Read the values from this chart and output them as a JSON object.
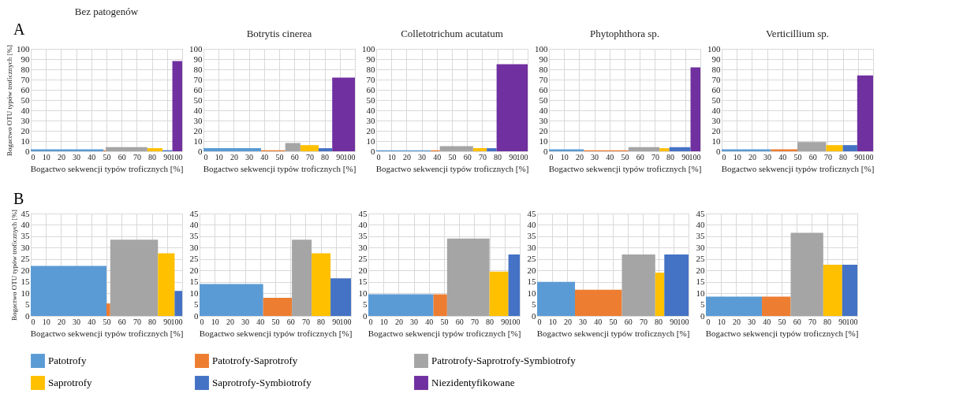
{
  "chart_data": [
    {
      "type": "histogram",
      "title": "Bez patogenów",
      "xlabel": "Bogactwo sekwencji typów troficznych [%]",
      "ylabel": "Bogactwo OTU typów troficznych [%]",
      "annotations": [
        "A"
      ],
      "legend": "bottom",
      "grid": true,
      "xlim": [
        0,
        100
      ],
      "xticks": [
        0,
        10,
        20,
        30,
        40,
        50,
        60,
        70,
        80,
        90,
        100
      ],
      "ylim": [
        0,
        100
      ],
      "yticks": [
        0,
        10,
        20,
        30,
        40,
        50,
        60,
        70,
        80,
        90,
        100
      ],
      "bins": [
        0,
        48,
        49.5,
        77,
        87,
        93.5,
        100
      ],
      "series": [
        {
          "name": "Patotrofy",
          "color": "#5b9bd5",
          "values": [
            2,
            null,
            null,
            null,
            null,
            null
          ]
        },
        {
          "name": "Patotrofy-Saprotrofy",
          "color": "#ed7d31",
          "values": [
            null,
            1,
            null,
            null,
            null,
            null
          ]
        },
        {
          "name": "Patrotrofy-Saprotrofy-Symbiotrofy",
          "color": "#a5a5a5",
          "values": [
            null,
            null,
            4,
            null,
            null,
            null
          ]
        },
        {
          "name": "Saprotrofy",
          "color": "#ffc000",
          "values": [
            null,
            null,
            null,
            3,
            null,
            null
          ]
        },
        {
          "name": "Saprotrofy-Symbiotrofy",
          "color": "#4472c4",
          "values": [
            null,
            null,
            null,
            null,
            1,
            null
          ]
        },
        {
          "name": "Niezidentyfikowane",
          "color": "#7030a0",
          "values": [
            null,
            null,
            null,
            null,
            null,
            88
          ]
        }
      ]
    },
    {
      "type": "histogram",
      "title": "Botrytis cinerea",
      "xlabel": "Bogactwo sekwencji typów troficznych [%]",
      "grid": true,
      "xlim": [
        0,
        100
      ],
      "xticks": [
        0,
        10,
        20,
        30,
        40,
        50,
        60,
        70,
        80,
        90,
        100
      ],
      "ylim": [
        0,
        100
      ],
      "yticks": [
        0,
        10,
        20,
        30,
        40,
        50,
        60,
        70,
        80,
        90,
        100
      ],
      "bins": [
        0,
        38,
        54,
        64,
        76,
        85,
        100
      ],
      "series": [
        {
          "color": "#5b9bd5",
          "values": [
            3,
            null,
            null,
            null,
            null,
            null
          ]
        },
        {
          "color": "#ed7d31",
          "values": [
            null,
            1,
            null,
            null,
            null,
            null
          ]
        },
        {
          "color": "#a5a5a5",
          "values": [
            null,
            null,
            8,
            null,
            null,
            null
          ]
        },
        {
          "color": "#ffc000",
          "values": [
            null,
            null,
            null,
            6,
            null,
            null
          ]
        },
        {
          "color": "#4472c4",
          "values": [
            null,
            null,
            null,
            null,
            3,
            null
          ]
        },
        {
          "color": "#7030a0",
          "values": [
            null,
            null,
            null,
            null,
            null,
            72
          ]
        }
      ]
    },
    {
      "type": "histogram",
      "title": "Colletotrichum acutatum",
      "xlabel": "Bogactwo sekwencji typów troficznych [%]",
      "grid": true,
      "xlim": [
        0,
        100
      ],
      "xticks": [
        0,
        10,
        20,
        30,
        40,
        50,
        60,
        70,
        80,
        90,
        100
      ],
      "ylim": [
        0,
        100
      ],
      "yticks": [
        0,
        10,
        20,
        30,
        40,
        50,
        60,
        70,
        80,
        90,
        100
      ],
      "bins": [
        0,
        36,
        42,
        64,
        73,
        79.5,
        100
      ],
      "series": [
        {
          "color": "#5b9bd5",
          "values": [
            1,
            null,
            null,
            null,
            null,
            null
          ]
        },
        {
          "color": "#ed7d31",
          "values": [
            null,
            1,
            null,
            null,
            null,
            null
          ]
        },
        {
          "color": "#a5a5a5",
          "values": [
            null,
            null,
            5,
            null,
            null,
            null
          ]
        },
        {
          "color": "#ffc000",
          "values": [
            null,
            null,
            null,
            3,
            null,
            null
          ]
        },
        {
          "color": "#4472c4",
          "values": [
            null,
            null,
            null,
            null,
            3,
            null
          ]
        },
        {
          "color": "#7030a0",
          "values": [
            null,
            null,
            null,
            null,
            null,
            85
          ]
        }
      ]
    },
    {
      "type": "histogram",
      "title": "Phytophthora sp.",
      "xlabel": "Bogactwo sekwencji typów troficznych [%]",
      "grid": true,
      "xlim": [
        0,
        100
      ],
      "xticks": [
        0,
        10,
        20,
        30,
        40,
        50,
        60,
        70,
        80,
        90,
        100
      ],
      "ylim": [
        0,
        100
      ],
      "yticks": [
        0,
        10,
        20,
        30,
        40,
        50,
        60,
        70,
        80,
        90,
        100
      ],
      "bins": [
        0,
        23,
        52.5,
        73,
        79.5,
        93.5,
        100
      ],
      "series": [
        {
          "color": "#5b9bd5",
          "values": [
            2,
            null,
            null,
            null,
            null,
            null
          ]
        },
        {
          "color": "#ed7d31",
          "values": [
            null,
            1,
            null,
            null,
            null,
            null
          ]
        },
        {
          "color": "#a5a5a5",
          "values": [
            null,
            null,
            4,
            null,
            null,
            null
          ]
        },
        {
          "color": "#ffc000",
          "values": [
            null,
            null,
            null,
            3,
            null,
            null
          ]
        },
        {
          "color": "#4472c4",
          "values": [
            null,
            null,
            null,
            null,
            4,
            null
          ]
        },
        {
          "color": "#7030a0",
          "values": [
            null,
            null,
            null,
            null,
            null,
            82
          ]
        }
      ]
    },
    {
      "type": "histogram",
      "title": "Verticillium sp.",
      "xlabel": "Bogactwo sekwencji typów troficznych [%]",
      "grid": true,
      "xlim": [
        0,
        100
      ],
      "xticks": [
        0,
        10,
        20,
        30,
        40,
        50,
        60,
        70,
        80,
        90,
        100
      ],
      "ylim": [
        0,
        100
      ],
      "yticks": [
        0,
        10,
        20,
        30,
        40,
        50,
        60,
        70,
        80,
        90,
        100
      ],
      "bins": [
        0,
        32.5,
        50,
        69,
        80,
        89.5,
        100
      ],
      "series": [
        {
          "color": "#5b9bd5",
          "values": [
            2,
            null,
            null,
            null,
            null,
            null
          ]
        },
        {
          "color": "#ed7d31",
          "values": [
            null,
            2,
            null,
            null,
            null,
            null
          ]
        },
        {
          "color": "#a5a5a5",
          "values": [
            null,
            null,
            9,
            null,
            null,
            null
          ]
        },
        {
          "color": "#ffc000",
          "values": [
            null,
            null,
            null,
            6,
            null,
            null
          ]
        },
        {
          "color": "#4472c4",
          "values": [
            null,
            null,
            null,
            null,
            6,
            null
          ]
        },
        {
          "color": "#7030a0",
          "values": [
            null,
            null,
            null,
            null,
            null,
            74
          ]
        }
      ]
    },
    {
      "type": "histogram",
      "xlabel": "Bogactwo sekwencji typów troficznych [%]",
      "ylabel": "Bogactwo OTU typów troficznych [%]",
      "annotations": [
        "B"
      ],
      "grid": true,
      "xlim": [
        0,
        100
      ],
      "xticks": [
        0,
        10,
        20,
        30,
        40,
        50,
        60,
        70,
        80,
        90,
        100
      ],
      "ylim": [
        0,
        45
      ],
      "yticks": [
        0,
        5,
        10,
        15,
        20,
        25,
        30,
        35,
        40,
        45
      ],
      "bins": [
        0,
        50,
        52.5,
        84,
        95,
        100
      ],
      "series": [
        {
          "color": "#5b9bd5",
          "values": [
            22,
            null,
            null,
            null,
            null
          ]
        },
        {
          "color": "#ed7d31",
          "values": [
            null,
            5.5,
            null,
            null,
            null
          ]
        },
        {
          "color": "#a5a5a5",
          "values": [
            null,
            null,
            33.5,
            null,
            null
          ]
        },
        {
          "color": "#ffc000",
          "values": [
            null,
            null,
            null,
            27.5,
            null
          ]
        },
        {
          "color": "#4472c4",
          "values": [
            null,
            null,
            null,
            null,
            11
          ]
        }
      ]
    },
    {
      "type": "histogram",
      "xlabel": "Bogactwo sekwencji typów troficznych [%]",
      "grid": true,
      "xlim": [
        0,
        100
      ],
      "xticks": [
        0,
        10,
        20,
        30,
        40,
        50,
        60,
        70,
        80,
        90,
        100
      ],
      "ylim": [
        0,
        45
      ],
      "yticks": [
        0,
        5,
        10,
        15,
        20,
        25,
        30,
        35,
        40,
        45
      ],
      "bins": [
        0,
        42,
        61,
        74,
        86.5,
        100
      ],
      "series": [
        {
          "color": "#5b9bd5",
          "values": [
            14,
            null,
            null,
            null,
            null
          ]
        },
        {
          "color": "#ed7d31",
          "values": [
            null,
            8,
            null,
            null,
            null
          ]
        },
        {
          "color": "#a5a5a5",
          "values": [
            null,
            null,
            33.5,
            null,
            null
          ]
        },
        {
          "color": "#ffc000",
          "values": [
            null,
            null,
            null,
            27.5,
            null
          ]
        },
        {
          "color": "#4472c4",
          "values": [
            null,
            null,
            null,
            null,
            16.5
          ]
        }
      ]
    },
    {
      "type": "histogram",
      "xlabel": "Bogactwo sekwencji typów troficznych [%]",
      "grid": true,
      "xlim": [
        0,
        100
      ],
      "xticks": [
        0,
        10,
        20,
        30,
        40,
        50,
        60,
        70,
        80,
        90,
        100
      ],
      "ylim": [
        0,
        45
      ],
      "yticks": [
        0,
        5,
        10,
        15,
        20,
        25,
        30,
        35,
        40,
        45
      ],
      "bins": [
        0,
        43,
        52,
        80,
        92.5,
        100
      ],
      "series": [
        {
          "color": "#5b9bd5",
          "values": [
            9.5,
            null,
            null,
            null,
            null
          ]
        },
        {
          "color": "#ed7d31",
          "values": [
            null,
            9.5,
            null,
            null,
            null
          ]
        },
        {
          "color": "#a5a5a5",
          "values": [
            null,
            null,
            34,
            null,
            null
          ]
        },
        {
          "color": "#ffc000",
          "values": [
            null,
            null,
            null,
            19.5,
            null
          ]
        },
        {
          "color": "#4472c4",
          "values": [
            null,
            null,
            null,
            null,
            27
          ]
        }
      ]
    },
    {
      "type": "histogram",
      "xlabel": "Bogactwo sekwencji typów troficznych [%]",
      "grid": true,
      "xlim": [
        0,
        100
      ],
      "xticks": [
        0,
        10,
        20,
        30,
        40,
        50,
        60,
        70,
        80,
        90,
        100
      ],
      "ylim": [
        0,
        45
      ],
      "yticks": [
        0,
        5,
        10,
        15,
        20,
        25,
        30,
        35,
        40,
        45
      ],
      "bins": [
        0,
        25,
        56,
        78,
        84,
        100
      ],
      "series": [
        {
          "color": "#5b9bd5",
          "values": [
            15,
            null,
            null,
            null,
            null
          ]
        },
        {
          "color": "#ed7d31",
          "values": [
            null,
            11.5,
            null,
            null,
            null
          ]
        },
        {
          "color": "#a5a5a5",
          "values": [
            null,
            null,
            27,
            null,
            null
          ]
        },
        {
          "color": "#ffc000",
          "values": [
            null,
            null,
            null,
            19,
            null
          ]
        },
        {
          "color": "#4472c4",
          "values": [
            null,
            null,
            null,
            null,
            27
          ]
        }
      ]
    },
    {
      "type": "histogram",
      "xlabel": "Bogactwo sekwencji typów troficznych [%]",
      "grid": true,
      "xlim": [
        0,
        100
      ],
      "xticks": [
        0,
        10,
        20,
        30,
        40,
        50,
        60,
        70,
        80,
        90,
        100
      ],
      "ylim": [
        0,
        45
      ],
      "yticks": [
        0,
        5,
        10,
        15,
        20,
        25,
        30,
        35,
        40,
        45
      ],
      "bins": [
        0,
        37,
        56,
        77.5,
        90,
        100
      ],
      "series": [
        {
          "color": "#5b9bd5",
          "values": [
            8.5,
            null,
            null,
            null,
            null
          ]
        },
        {
          "color": "#ed7d31",
          "values": [
            null,
            8.5,
            null,
            null,
            null
          ]
        },
        {
          "color": "#a5a5a5",
          "values": [
            null,
            null,
            36.5,
            null,
            null
          ]
        },
        {
          "color": "#ffc000",
          "values": [
            null,
            null,
            null,
            22.5,
            null
          ]
        },
        {
          "color": "#4472c4",
          "values": [
            null,
            null,
            null,
            null,
            22.5
          ]
        }
      ]
    }
  ]
}
